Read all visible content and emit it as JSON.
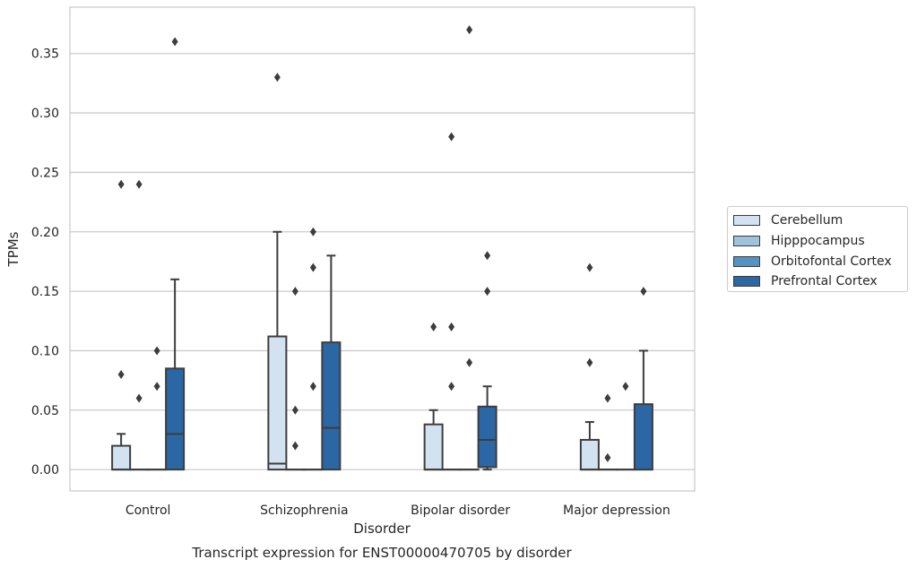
{
  "chart_data": {
    "type": "box",
    "title": "",
    "caption": "Transcript expression for ENST00000470705 by disorder",
    "xlabel": "Disorder",
    "ylabel": "TPMs",
    "ylim": [
      -0.018,
      0.389
    ],
    "yticks": [
      0.0,
      0.05,
      0.1,
      0.15,
      0.2,
      0.25,
      0.3,
      0.35
    ],
    "ytick_labels": [
      "0.00",
      "0.05",
      "0.10",
      "0.15",
      "0.20",
      "0.25",
      "0.30",
      "0.35"
    ],
    "grid": "horizontal",
    "legend_position": "right",
    "categories": [
      "Control",
      "Schizophrenia",
      "Bipolar disorder",
      "Major depression"
    ],
    "series": [
      {
        "name": "Cerebellum",
        "color": "#d3e2f1",
        "boxes": [
          {
            "q1": 0.0,
            "median": 0.0,
            "q3": 0.02,
            "whislo": 0.0,
            "whishi": 0.03,
            "fliers": [
              0.24,
              0.08
            ]
          },
          {
            "q1": 0.0,
            "median": 0.005,
            "q3": 0.112,
            "whislo": 0.0,
            "whishi": 0.2,
            "fliers": [
              0.33
            ]
          },
          {
            "q1": 0.0,
            "median": 0.0,
            "q3": 0.038,
            "whislo": 0.0,
            "whishi": 0.05,
            "fliers": [
              0.12
            ]
          },
          {
            "q1": 0.0,
            "median": 0.0,
            "q3": 0.025,
            "whislo": 0.0,
            "whishi": 0.04,
            "fliers": [
              0.17,
              0.09
            ]
          }
        ]
      },
      {
        "name": "Hipppocampus",
        "color": "#9fc3db",
        "boxes": [
          {
            "q1": 0.0,
            "median": 0.0,
            "q3": 0.0,
            "whislo": 0.0,
            "whishi": 0.0,
            "fliers": [
              0.24,
              0.06
            ]
          },
          {
            "q1": 0.0,
            "median": 0.0,
            "q3": 0.0,
            "whislo": 0.0,
            "whishi": 0.0,
            "fliers": [
              0.15,
              0.05,
              0.02
            ]
          },
          {
            "q1": 0.0,
            "median": 0.0,
            "q3": 0.0,
            "whislo": 0.0,
            "whishi": 0.0,
            "fliers": [
              0.28,
              0.12,
              0.07
            ]
          },
          {
            "q1": 0.0,
            "median": 0.0,
            "q3": 0.0,
            "whislo": 0.0,
            "whishi": 0.0,
            "fliers": [
              0.06,
              0.01
            ]
          }
        ]
      },
      {
        "name": "Orbitofontal Cortex",
        "color": "#5492c2",
        "boxes": [
          {
            "q1": 0.0,
            "median": 0.0,
            "q3": 0.0,
            "whislo": 0.0,
            "whishi": 0.0,
            "fliers": [
              0.1,
              0.07
            ]
          },
          {
            "q1": 0.0,
            "median": 0.0,
            "q3": 0.0,
            "whislo": 0.0,
            "whishi": 0.0,
            "fliers": [
              0.2,
              0.17,
              0.07
            ]
          },
          {
            "q1": 0.0,
            "median": 0.0,
            "q3": 0.0,
            "whislo": 0.0,
            "whishi": 0.0,
            "fliers": [
              0.37,
              0.09
            ]
          },
          {
            "q1": 0.0,
            "median": 0.0,
            "q3": 0.0,
            "whislo": 0.0,
            "whishi": 0.0,
            "fliers": [
              0.07
            ]
          }
        ]
      },
      {
        "name": "Prefrontal Cortex",
        "color": "#2b67a5",
        "boxes": [
          {
            "q1": 0.0,
            "median": 0.03,
            "q3": 0.085,
            "whislo": 0.0,
            "whishi": 0.16,
            "fliers": [
              0.36
            ]
          },
          {
            "q1": 0.0,
            "median": 0.035,
            "q3": 0.107,
            "whislo": 0.0,
            "whishi": 0.18,
            "fliers": []
          },
          {
            "q1": 0.002,
            "median": 0.025,
            "q3": 0.053,
            "whislo": 0.0,
            "whishi": 0.07,
            "fliers": [
              0.18,
              0.15
            ]
          },
          {
            "q1": 0.0,
            "median": 0.0,
            "q3": 0.055,
            "whislo": 0.0,
            "whishi": 0.1,
            "fliers": [
              0.15
            ]
          }
        ]
      }
    ]
  }
}
